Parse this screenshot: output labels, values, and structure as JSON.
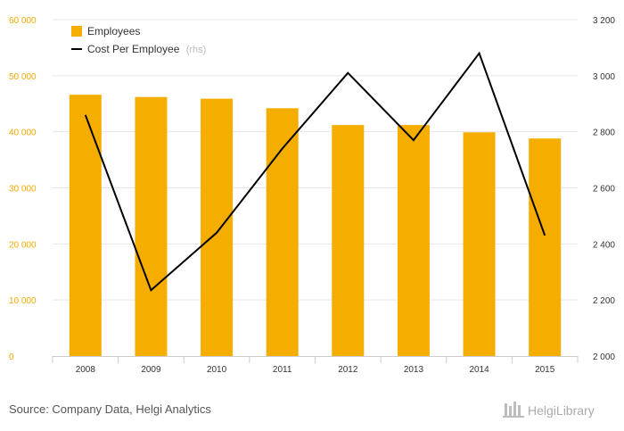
{
  "chart_data": {
    "type": "bar",
    "categories": [
      "2008",
      "2009",
      "2010",
      "2011",
      "2012",
      "2013",
      "2014",
      "2015"
    ],
    "series": [
      {
        "name": "Employees",
        "type": "bar",
        "axis": "left",
        "color": "#f5ad00",
        "values": [
          46600,
          46200,
          45900,
          44200,
          41200,
          41200,
          39900,
          38800
        ]
      },
      {
        "name": "Cost Per Employee",
        "name_note": "(rhs)",
        "type": "line",
        "axis": "right",
        "color": "#000000",
        "values": [
          2860,
          2235,
          2440,
          2740,
          3010,
          2770,
          3080,
          2430
        ]
      }
    ],
    "y_left": {
      "range": [
        0,
        60000
      ],
      "ticks": [
        0,
        10000,
        20000,
        30000,
        40000,
        50000,
        60000
      ],
      "tick_labels": [
        "0",
        "10 000",
        "20 000",
        "30 000",
        "40 000",
        "50 000",
        "60 000"
      ]
    },
    "y_right": {
      "range": [
        2000,
        3200
      ],
      "ticks": [
        2000,
        2200,
        2400,
        2600,
        2800,
        3000,
        3200
      ],
      "tick_labels": [
        "2 000",
        "2 200",
        "2 400",
        "2 600",
        "2 800",
        "3 000",
        "3 200"
      ]
    },
    "grid": "horizontal",
    "legend_placement": "top-left"
  },
  "source": "Source: Company Data, Helgi Analytics",
  "brand": "HelgiLibrary"
}
